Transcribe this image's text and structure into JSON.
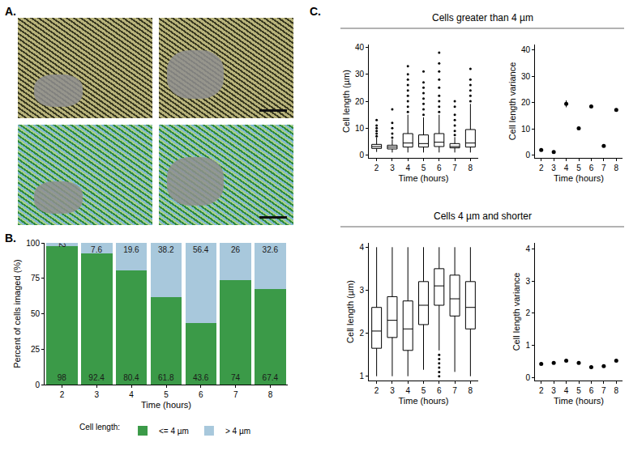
{
  "panel_labels": [
    "A.",
    "B.",
    "C."
  ],
  "chart_data": [
    {
      "type": "bar",
      "panel": "B.",
      "stacked": true,
      "data_labels": true,
      "legend": "bottom",
      "legend_title": "Cell length:",
      "grid": false,
      "x": [
        2,
        3,
        4,
        5,
        6,
        7,
        8
      ],
      "xlim": [
        1.5,
        8.5
      ],
      "xticks": [
        2,
        3,
        4,
        5,
        6,
        7,
        8
      ],
      "ylim": [
        0,
        100
      ],
      "yticks": [
        0,
        25,
        50,
        75,
        100
      ],
      "xlabel": "Time (hours)",
      "ylabel": "Percent of cells imaged (%)",
      "series": [
        {
          "name": "<= 4 µm",
          "color": "#3b9a48",
          "values": [
            98,
            92.4,
            80.4,
            61.8,
            43.6,
            74,
            67.4
          ]
        },
        {
          "name": "> 4 µm",
          "color": "#a8c8dc",
          "values": [
            2,
            7.6,
            19.6,
            38.2,
            56.4,
            26,
            32.6
          ]
        }
      ]
    },
    {
      "type": "box",
      "panel": "C.",
      "section": "Cells greater than 4 µm",
      "grid": false,
      "x": [
        2,
        3,
        4,
        5,
        6,
        7,
        8
      ],
      "xlim": [
        1.5,
        8.5
      ],
      "xticks": [
        2,
        3,
        4,
        5,
        6,
        7,
        8
      ],
      "ylim": [
        -1,
        41
      ],
      "yticks": [
        0,
        10,
        20,
        30,
        40
      ],
      "xlabel": "Time (hours)",
      "ylabel": "Cell length (µm)",
      "lowerfence": [
        1.2,
        1.0,
        1.0,
        1.0,
        1.0,
        1.0,
        1.0
      ],
      "q1": [
        2.5,
        2.3,
        3.0,
        3.0,
        3.2,
        2.7,
        3.0
      ],
      "median": [
        3.2,
        3.0,
        4.5,
        4.3,
        4.8,
        3.2,
        4.5
      ],
      "q3": [
        4.0,
        3.7,
        8.0,
        7.5,
        8.0,
        4.3,
        9.5
      ],
      "upperfence": [
        6.5,
        5.8,
        15,
        14,
        15,
        6.7,
        19
      ],
      "outliers": [
        [
          7,
          8,
          9,
          10,
          11,
          13
        ],
        [
          6.5,
          8,
          10,
          12,
          17
        ],
        [
          16,
          18,
          20,
          22,
          24,
          26,
          28,
          30,
          33
        ],
        [
          15,
          17,
          19,
          21,
          23,
          25,
          27,
          31
        ],
        [
          16,
          18,
          20,
          22,
          25,
          28,
          31,
          34,
          38
        ],
        [
          7.5,
          9,
          11,
          13,
          15,
          18,
          20
        ],
        [
          20,
          22,
          24,
          26,
          28,
          32
        ]
      ]
    },
    {
      "type": "scatter",
      "grid": false,
      "x": [
        2,
        3,
        4,
        5,
        6,
        7,
        8
      ],
      "xlim": [
        1.5,
        8.5
      ],
      "xticks": [
        2,
        3,
        4,
        5,
        6,
        7,
        8
      ],
      "ylim": [
        -1,
        42
      ],
      "yticks": [
        0,
        10,
        20,
        30,
        40
      ],
      "xlabel": "Time (hours)",
      "ylabel": "Cell length variance",
      "values": [
        2,
        1.2,
        19.5,
        10.2,
        18.5,
        3.5,
        17.2
      ],
      "errors": [
        0.3,
        0.2,
        1.3,
        0.4,
        0.5,
        0.3,
        0.4
      ]
    },
    {
      "type": "box",
      "section": "Cells 4 µm and shorter",
      "grid": false,
      "x": [
        2,
        3,
        4,
        5,
        6,
        7,
        8
      ],
      "xlim": [
        1.5,
        8.5
      ],
      "xticks": [
        2,
        3,
        4,
        5,
        6,
        7,
        8
      ],
      "ylim": [
        0.9,
        4.1
      ],
      "yticks": [
        1,
        2,
        3,
        4
      ],
      "xlabel": "Time (hours)",
      "ylabel": "Cell length (µm)",
      "lowerfence": [
        1.0,
        1.0,
        1.0,
        1.15,
        1.6,
        1.1,
        1.0
      ],
      "q1": [
        1.65,
        1.9,
        1.6,
        2.2,
        2.65,
        2.4,
        2.1
      ],
      "median": [
        2.05,
        2.3,
        2.1,
        2.65,
        3.1,
        2.8,
        2.6
      ],
      "q3": [
        2.6,
        2.85,
        2.75,
        3.2,
        3.5,
        3.35,
        3.2
      ],
      "upperfence": [
        4.0,
        4.0,
        4.0,
        4.0,
        4.0,
        4.0,
        4.0
      ],
      "outliers": [
        [],
        [],
        [],
        [],
        [
          1.0,
          1.1,
          1.2,
          1.3,
          1.4,
          1.5
        ],
        [],
        []
      ]
    },
    {
      "type": "scatter",
      "grid": false,
      "x": [
        2,
        3,
        4,
        5,
        6,
        7,
        8
      ],
      "xlim": [
        1.5,
        8.5
      ],
      "xticks": [
        2,
        3,
        4,
        5,
        6,
        7,
        8
      ],
      "ylim": [
        -0.1,
        4.2
      ],
      "yticks": [
        0,
        1,
        2,
        3,
        4
      ],
      "xlabel": "Time (hours)",
      "ylabel": "Cell length variance",
      "values": [
        0.42,
        0.45,
        0.52,
        0.45,
        0.32,
        0.35,
        0.52
      ]
    }
  ]
}
